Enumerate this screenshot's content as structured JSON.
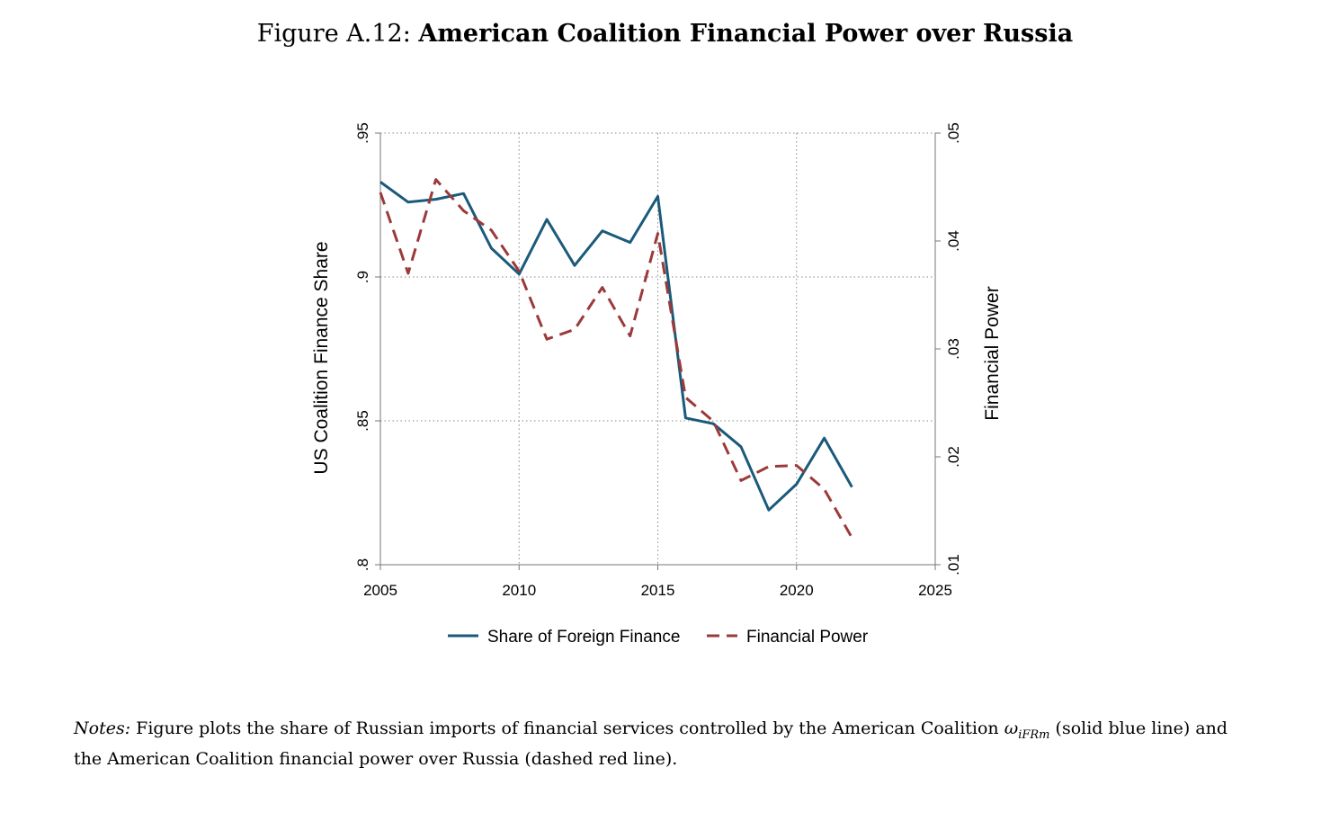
{
  "figure": {
    "label": "Figure A.12:",
    "title": "American Coalition Financial Power over Russia"
  },
  "notes": {
    "label": "Notes:",
    "text_before": " Figure plots the share of Russian imports of financial services controlled by the American Coalition ",
    "symbol": "ω",
    "symbol_sub": "iFRm",
    "text_after": " (solid blue line) and the American Coalition financial power over Russia (dashed red line)."
  },
  "colors": {
    "share_line": "#1a5a7a",
    "power_line": "#9b3a3a",
    "axis": "#777777",
    "grid": "#888888"
  },
  "chart_data": {
    "type": "line",
    "xlabel": "",
    "ylabel_left": "US Coalition Finance Share",
    "ylabel_right": "Financial Power",
    "xlim": [
      2005,
      2025
    ],
    "ylim_left": [
      0.8,
      0.95
    ],
    "ylim_right": [
      0.01,
      0.05
    ],
    "x_ticks": [
      "2005",
      "2010",
      "2015",
      "2020",
      "2025"
    ],
    "y_left_ticks": [
      ".8",
      ".85",
      ".9",
      ".95"
    ],
    "y_right_ticks": [
      ".01",
      ".02",
      ".03",
      ".04",
      ".05"
    ],
    "grid": "dotted",
    "legend_position": "bottom",
    "series": [
      {
        "name": "Share of Foreign Finance",
        "axis": "left",
        "style": "solid",
        "x": [
          2005,
          2006,
          2007,
          2008,
          2009,
          2010,
          2011,
          2012,
          2013,
          2014,
          2015,
          2016,
          2017,
          2018,
          2019,
          2020,
          2021,
          2022
        ],
        "values": [
          0.933,
          0.926,
          0.927,
          0.929,
          0.91,
          0.901,
          0.92,
          0.904,
          0.916,
          0.912,
          0.928,
          0.851,
          0.849,
          0.841,
          0.819,
          0.828,
          0.844,
          0.827
        ]
      },
      {
        "name": "Financial Power",
        "axis": "right",
        "style": "dashed",
        "x": [
          2005,
          2006,
          2007,
          2008,
          2009,
          2010,
          2011,
          2012,
          2013,
          2014,
          2015,
          2016,
          2017,
          2018,
          2019,
          2020,
          2021,
          2022
        ],
        "values": [
          0.0445,
          0.037,
          0.0457,
          0.0428,
          0.041,
          0.0372,
          0.0309,
          0.0318,
          0.0357,
          0.0312,
          0.0407,
          0.0255,
          0.0233,
          0.0178,
          0.0191,
          0.0192,
          0.017,
          0.0125
        ]
      }
    ]
  }
}
